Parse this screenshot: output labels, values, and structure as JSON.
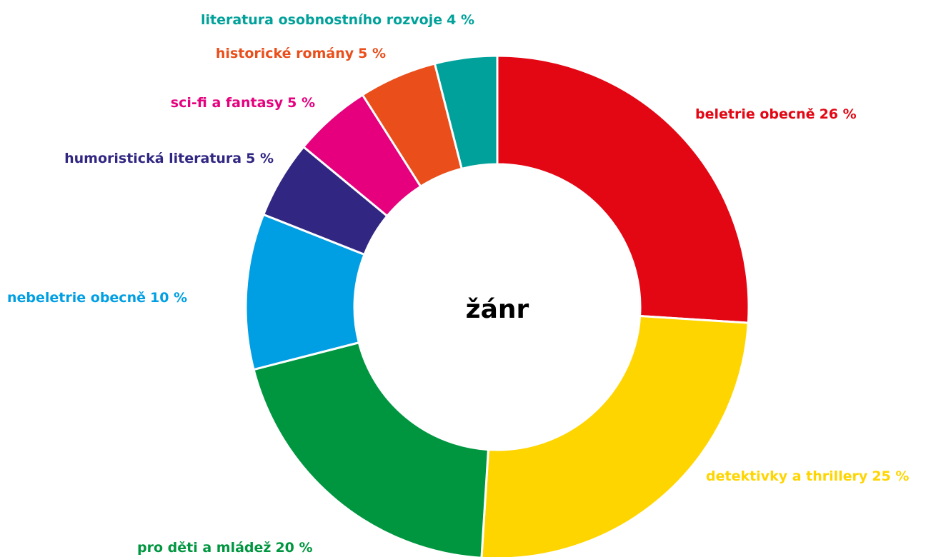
{
  "chart_data": {
    "type": "donut",
    "center_label": "žánr",
    "categories": [
      "beletrie obecně",
      "detektivky a thrillery",
      "pro děti a mládež",
      "nebeletrie obecně",
      "humoristická literatura",
      "sci-fi a fantasy",
      "historické romány",
      "literatura osobnostního rozvoje"
    ],
    "values": [
      26,
      25,
      20,
      10,
      5,
      5,
      5,
      4
    ],
    "value_labels": [
      "26 %",
      "25 %",
      "20 %",
      "10 %",
      "5 %",
      "5 %",
      "5 %",
      "4 %"
    ],
    "colors": [
      "#e30613",
      "#ffd500",
      "#009640",
      "#009fe3",
      "#312783",
      "#e6007e",
      "#e94e1b",
      "#00a19a"
    ]
  }
}
